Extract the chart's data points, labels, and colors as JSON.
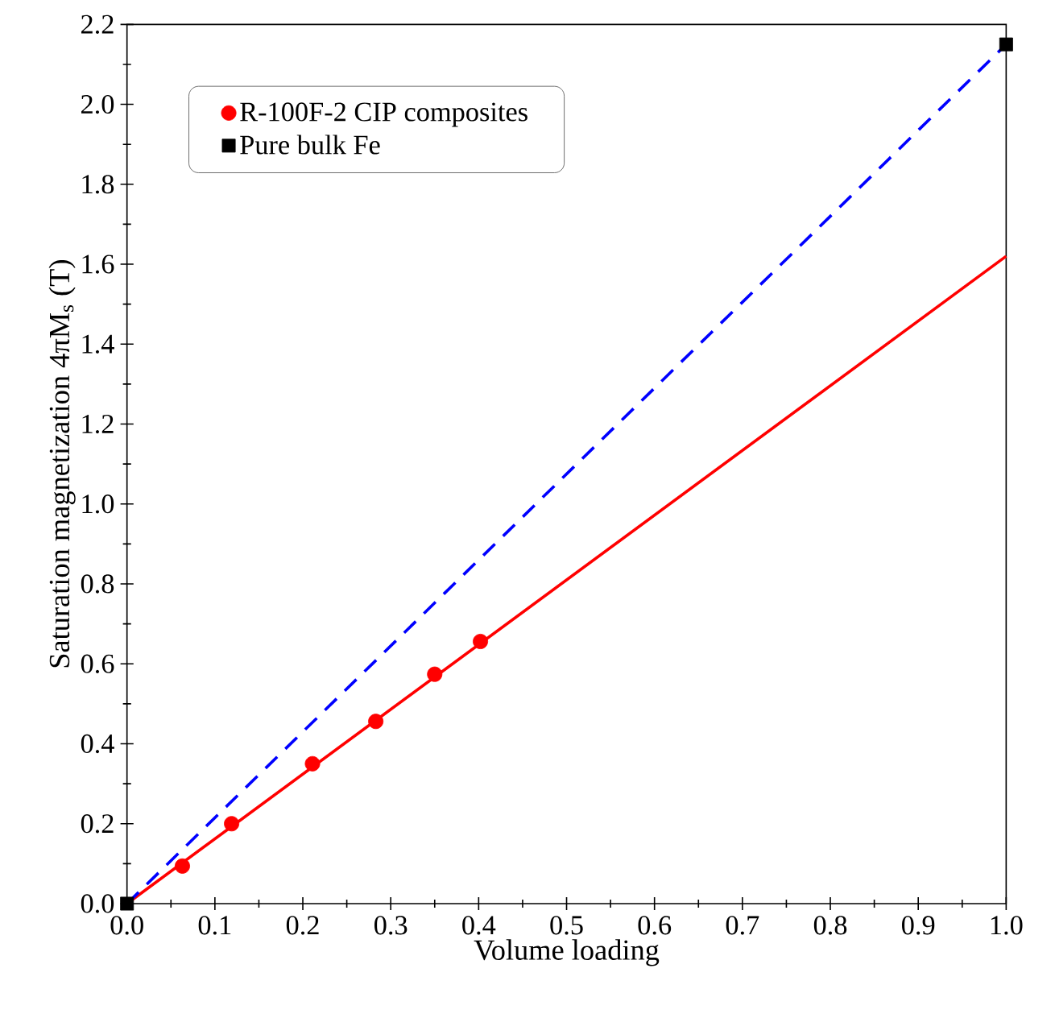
{
  "chart_data": {
    "type": "scatter",
    "xlabel": "Volume loading",
    "ylabel": "Saturation magnetization 4πM$_{s}$ (T)",
    "xlim": [
      0,
      1
    ],
    "ylim": [
      0,
      2.2
    ],
    "xticks": [
      {
        "value": 0,
        "label": "0.0"
      },
      0.1,
      0.2,
      0.3,
      0.4,
      0.5,
      0.6,
      0.7,
      0.8,
      0.9,
      {
        "value": 1,
        "label": "1.0"
      }
    ],
    "yticks": [
      {
        "value": 0,
        "label": "0.0"
      },
      0.2,
      0.4,
      0.6,
      0.8,
      {
        "value": 1,
        "label": "1.0"
      },
      1.2,
      1.4,
      1.6,
      1.8,
      {
        "value": 2,
        "label": "2.0"
      },
      2.2
    ],
    "legend": "top left",
    "grid": false,
    "series": [
      {
        "type": "line",
        "color": "#ff0000",
        "line_style": "solid",
        "x": [
          0,
          1
        ],
        "values": [
          0,
          1.62
        ]
      },
      {
        "type": "line",
        "color": "#0000ff",
        "line_style": "dashed",
        "x": [
          0,
          1
        ],
        "values": [
          0,
          2.15
        ]
      },
      {
        "name": "R-100F-2 CIP composites",
        "color": "#ff0000",
        "marker": "circle",
        "x": [
          0.063,
          0.119,
          0.211,
          0.283,
          0.35,
          0.402
        ],
        "values": [
          0.094,
          0.2,
          0.35,
          0.456,
          0.574,
          0.656
        ]
      },
      {
        "name": "Pure bulk Fe",
        "color": "#000000",
        "marker": "square",
        "x": [
          0,
          1
        ],
        "values": [
          0,
          2.15
        ]
      }
    ]
  }
}
